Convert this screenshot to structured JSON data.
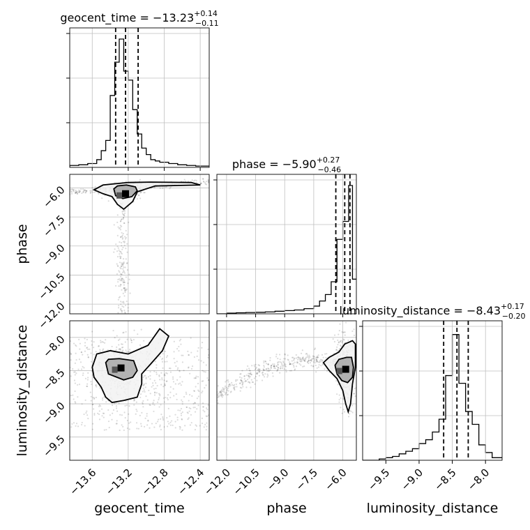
{
  "chart_data": {
    "type": "corner",
    "parameters": [
      "geocent_time",
      "phase",
      "luminosity_distance"
    ],
    "axes": {
      "geocent_time": {
        "label": "geocent_time",
        "lim": [
          -13.85,
          -12.3
        ],
        "ticks": [
          -13.6,
          -13.2,
          -12.8,
          -12.4
        ],
        "tick_labels": [
          "−13.6",
          "−13.2",
          "−12.8",
          "−12.4"
        ]
      },
      "phase": {
        "label": "phase",
        "lim": [
          -12.5,
          -5.3
        ],
        "ticks": [
          -12.0,
          -10.5,
          -9.0,
          -7.5,
          -6.0
        ],
        "tick_labels": [
          "−12.0",
          "−10.5",
          "−9.0",
          "−7.5",
          "−6.0"
        ]
      },
      "luminosity_distance": {
        "label": "luminosity_distance",
        "lim": [
          -9.85,
          -7.75
        ],
        "ticks": [
          -9.5,
          -9.0,
          -8.5,
          -8.0
        ],
        "tick_labels": [
          "−9.5",
          "−9.0",
          "−8.5",
          "−8.0"
        ]
      }
    },
    "titles": {
      "geocent_time": {
        "name": "geocent_time",
        "median": "−13.23",
        "plus": "+0.14",
        "minus": "−0.11"
      },
      "phase": {
        "name": "phase",
        "median": "−5.90",
        "plus": "+0.27",
        "minus": "−0.46"
      },
      "luminosity_distance": {
        "name": "luminosity_distance",
        "median": "−8.43",
        "plus": "+0.17",
        "minus": "−0.20"
      }
    },
    "quantiles": {
      "geocent_time": [
        -13.34,
        -13.23,
        -13.09
      ],
      "phase": [
        -6.36,
        -5.9,
        -5.63
      ],
      "luminosity_distance": [
        -8.63,
        -8.43,
        -8.26
      ]
    },
    "histograms": {
      "geocent_time": {
        "edges": [
          -13.85,
          -13.75,
          -13.65,
          -13.55,
          -13.5,
          -13.45,
          -13.4,
          -13.35,
          -13.3,
          -13.25,
          -13.2,
          -13.15,
          -13.1,
          -13.05,
          -13.0,
          -12.95,
          -12.9,
          -12.85,
          -12.75,
          -12.65,
          -12.55,
          -12.45,
          -12.3
        ],
        "counts": [
          0.015,
          0.02,
          0.03,
          0.06,
          0.13,
          0.21,
          0.56,
          0.82,
          1.0,
          0.75,
          0.68,
          0.45,
          0.26,
          0.15,
          0.1,
          0.06,
          0.05,
          0.04,
          0.03,
          0.02,
          0.015,
          0.01
        ]
      },
      "phase": {
        "edges": [
          -12.5,
          -12.0,
          -11.5,
          -11.0,
          -10.5,
          -10.0,
          -9.5,
          -9.0,
          -8.5,
          -8.0,
          -7.5,
          -7.2,
          -6.9,
          -6.6,
          -6.3,
          -6.0,
          -5.7,
          -5.5,
          -5.3
        ],
        "counts": [
          0.0,
          0.005,
          0.008,
          0.01,
          0.012,
          0.015,
          0.02,
          0.025,
          0.03,
          0.04,
          0.06,
          0.1,
          0.15,
          0.25,
          0.58,
          0.72,
          1.0,
          0.27
        ]
      },
      "luminosity_distance": {
        "edges": [
          -9.85,
          -9.6,
          -9.5,
          -9.4,
          -9.3,
          -9.2,
          -9.1,
          -9.0,
          -8.9,
          -8.8,
          -8.7,
          -8.6,
          -8.5,
          -8.4,
          -8.3,
          -8.2,
          -8.1,
          -8.0,
          -7.9,
          -7.75
        ],
        "counts": [
          0.0,
          0.01,
          0.02,
          0.03,
          0.05,
          0.07,
          0.09,
          0.13,
          0.16,
          0.22,
          0.32,
          0.66,
          0.98,
          0.6,
          0.38,
          0.28,
          0.12,
          0.06,
          0.02
        ]
      }
    },
    "contours": {
      "phase_vs_geocent_time": {
        "peak": [
          -13.23,
          -6.3
        ],
        "inner": [
          [
            -13.36,
            -6.05
          ],
          [
            -13.32,
            -5.9
          ],
          [
            -13.22,
            -5.85
          ],
          [
            -13.12,
            -5.95
          ],
          [
            -13.1,
            -6.15
          ],
          [
            -13.16,
            -6.45
          ],
          [
            -13.26,
            -6.55
          ],
          [
            -13.34,
            -6.4
          ]
        ],
        "outer": [
          [
            -13.58,
            -6.1
          ],
          [
            -13.48,
            -5.85
          ],
          [
            -13.2,
            -5.72
          ],
          [
            -12.95,
            -5.7
          ],
          [
            -12.5,
            -5.72
          ],
          [
            -12.4,
            -5.85
          ],
          [
            -12.9,
            -5.9
          ],
          [
            -13.1,
            -6.2
          ],
          [
            -13.15,
            -6.7
          ],
          [
            -13.25,
            -7.1
          ],
          [
            -13.32,
            -6.85
          ],
          [
            -13.38,
            -6.45
          ],
          [
            -13.48,
            -6.3
          ]
        ]
      },
      "luminosity_distance_vs_geocent_time": {
        "peak": [
          -13.28,
          -8.46
        ],
        "inner": [
          [
            -13.45,
            -8.38
          ],
          [
            -13.42,
            -8.33
          ],
          [
            -13.3,
            -8.32
          ],
          [
            -13.14,
            -8.35
          ],
          [
            -13.1,
            -8.5
          ],
          [
            -13.15,
            -8.6
          ],
          [
            -13.25,
            -8.64
          ],
          [
            -13.42,
            -8.55
          ]
        ],
        "outer": [
          [
            -13.6,
            -8.45
          ],
          [
            -13.55,
            -8.25
          ],
          [
            -13.4,
            -8.2
          ],
          [
            -13.2,
            -8.25
          ],
          [
            -12.98,
            -8.12
          ],
          [
            -12.85,
            -7.87
          ],
          [
            -12.75,
            -7.98
          ],
          [
            -12.82,
            -8.2
          ],
          [
            -12.95,
            -8.4
          ],
          [
            -13.05,
            -8.55
          ],
          [
            -13.05,
            -8.7
          ],
          [
            -13.1,
            -8.9
          ],
          [
            -13.25,
            -8.95
          ],
          [
            -13.38,
            -8.98
          ],
          [
            -13.45,
            -8.9
          ],
          [
            -13.5,
            -8.75
          ],
          [
            -13.58,
            -8.6
          ]
        ]
      },
      "luminosity_distance_vs_phase": {
        "peak": [
          -5.85,
          -8.48
        ],
        "inner": [
          [
            -6.4,
            -8.42
          ],
          [
            -6.2,
            -8.33
          ],
          [
            -5.8,
            -8.3
          ],
          [
            -5.55,
            -8.3
          ],
          [
            -5.45,
            -8.45
          ],
          [
            -5.5,
            -8.6
          ],
          [
            -5.75,
            -8.68
          ],
          [
            -6.05,
            -8.65
          ],
          [
            -6.3,
            -8.55
          ]
        ],
        "outer": [
          [
            -7.0,
            -8.38
          ],
          [
            -6.7,
            -8.3
          ],
          [
            -6.2,
            -8.22
          ],
          [
            -5.9,
            -8.1
          ],
          [
            -5.5,
            -8.05
          ],
          [
            -5.35,
            -8.1
          ],
          [
            -5.35,
            -8.45
          ],
          [
            -5.5,
            -8.7
          ],
          [
            -5.6,
            -9.0
          ],
          [
            -5.72,
            -9.12
          ],
          [
            -5.85,
            -9.0
          ],
          [
            -6.0,
            -8.8
          ],
          [
            -6.3,
            -8.62
          ],
          [
            -6.7,
            -8.5
          ]
        ]
      }
    }
  }
}
